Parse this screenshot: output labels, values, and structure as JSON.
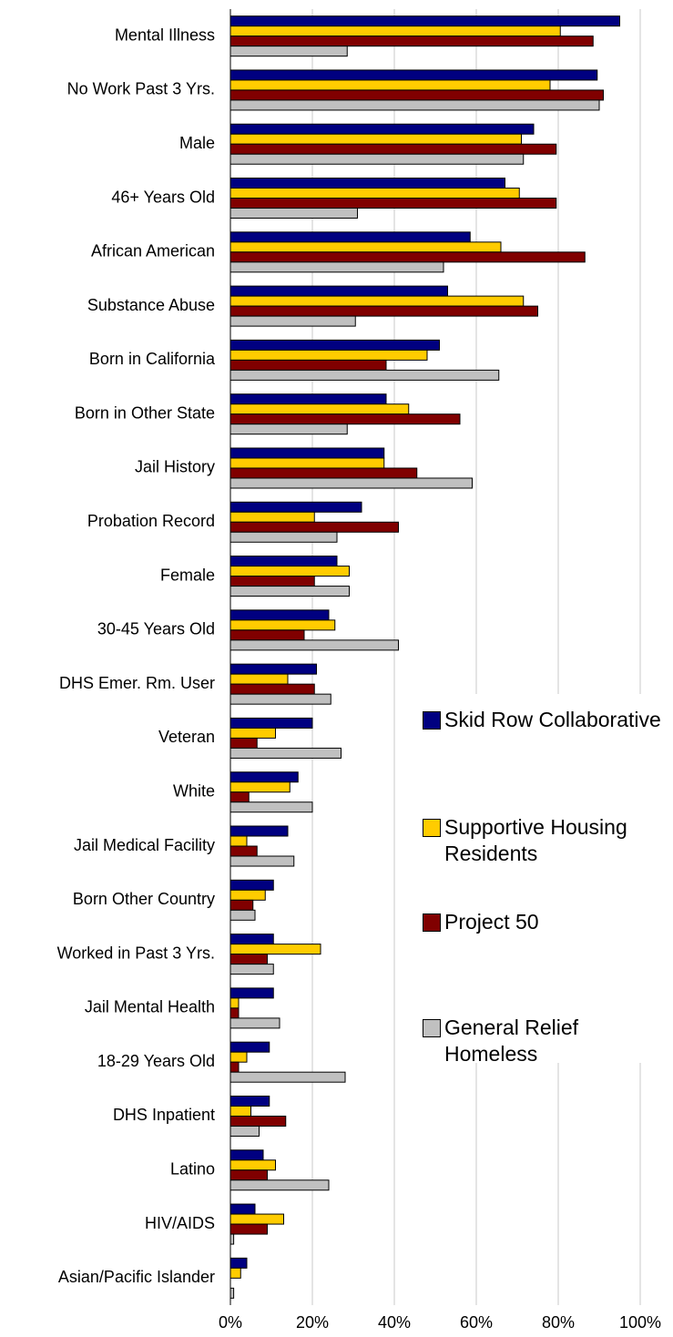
{
  "chart_data": {
    "type": "hbar",
    "categories": [
      "Mental Illness",
      "No Work Past 3 Yrs.",
      "Male",
      "46+ Years Old",
      "African American",
      "Substance Abuse",
      "Born in California",
      "Born in Other State",
      "Jail History",
      "Probation Record",
      "Female",
      "30-45 Years Old",
      "DHS Emer. Rm. User",
      "Veteran",
      "White",
      "Jail Medical Facility",
      "Born Other Country",
      "Worked in Past 3 Yrs.",
      "Jail Mental Health",
      "18-29 Years Old",
      "DHS Inpatient",
      "Latino",
      "HIV/AIDS",
      "Asian/Pacific Islander"
    ],
    "series": [
      {
        "name": "Skid Row Collaborative",
        "color": "#000080",
        "values": [
          95,
          89.5,
          74,
          67,
          58.5,
          53,
          51,
          38,
          37.5,
          32,
          26,
          24,
          21,
          20,
          16.5,
          14,
          10.5,
          10.5,
          10.5,
          9.5,
          9.5,
          8,
          6,
          4
        ]
      },
      {
        "name": "Supportive Housing Residents",
        "color": "#ffcc00",
        "values": [
          80.5,
          78,
          71,
          70.5,
          66,
          71.5,
          48,
          43.5,
          37.5,
          20.5,
          29,
          25.5,
          14,
          11,
          14.5,
          4,
          8.5,
          22,
          2,
          4,
          5,
          11,
          13,
          2.5
        ]
      },
      {
        "name": "Project 50",
        "color": "#800000",
        "values": [
          88.5,
          91,
          79.5,
          79.5,
          86.5,
          75,
          38,
          56,
          45.5,
          41,
          20.5,
          18,
          20.5,
          6.5,
          4.5,
          6.5,
          5.5,
          9,
          2,
          2,
          13.5,
          9,
          9,
          0
        ]
      },
      {
        "name": "General Relief Homeless",
        "color": "#c0c0c0",
        "values": [
          28.5,
          90,
          71.5,
          31,
          52,
          30.5,
          65.5,
          28.5,
          59,
          26,
          29,
          41,
          24.5,
          27,
          20,
          15.5,
          6,
          10.5,
          12,
          28,
          7,
          24,
          0.8,
          0.8
        ]
      }
    ],
    "xlim": [
      0,
      100
    ],
    "xticks": [
      {
        "value": 0,
        "label": "0%"
      },
      {
        "value": 20,
        "label": "20%"
      },
      {
        "value": 40,
        "label": "40%"
      },
      {
        "value": 60,
        "label": "60%"
      },
      {
        "value": 80,
        "label": "80%"
      },
      {
        "value": 100,
        "label": "100%"
      }
    ],
    "grid": true,
    "legend": "right"
  }
}
